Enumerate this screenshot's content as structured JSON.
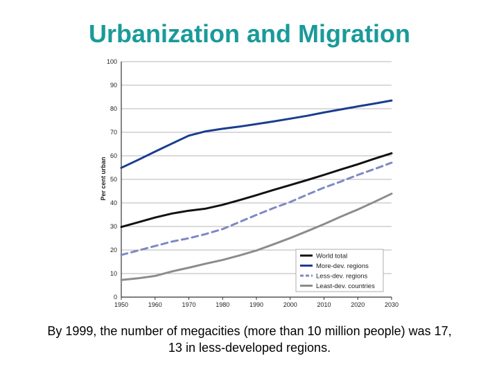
{
  "title": "Urbanization and Migration",
  "caption_line1": "By 1999, the number of megacities (more than 10 million people) was 17,",
  "caption_line2": "13 in less-developed regions.",
  "chart_data": {
    "type": "line",
    "xlabel": "",
    "ylabel": "Per cent urban",
    "xlim": [
      1950,
      2030
    ],
    "ylim": [
      0,
      100
    ],
    "xticks": [
      1950,
      1960,
      1970,
      1980,
      1990,
      2000,
      2010,
      2020,
      2030
    ],
    "yticks": [
      0,
      10,
      20,
      30,
      40,
      50,
      60,
      70,
      80,
      90,
      100
    ],
    "grid": "horizontal",
    "legend_position": "bottom-right",
    "x": [
      1950,
      1955,
      1960,
      1965,
      1970,
      1975,
      1980,
      1985,
      1990,
      1995,
      2000,
      2005,
      2010,
      2015,
      2020,
      2025,
      2030
    ],
    "series": [
      {
        "name": "World total",
        "color": "#111111",
        "dash": "solid",
        "values": [
          29.8,
          31.8,
          33.8,
          35.5,
          36.7,
          37.6,
          39.2,
          41.2,
          43.3,
          45.5,
          47.6,
          49.7,
          51.9,
          54.2,
          56.4,
          58.8,
          61.1
        ]
      },
      {
        "name": "More-dev. regions",
        "color": "#1a3d8f",
        "dash": "solid",
        "values": [
          54.9,
          58.3,
          61.8,
          65.2,
          68.6,
          70.4,
          71.5,
          72.4,
          73.5,
          74.6,
          75.8,
          77.0,
          78.4,
          79.7,
          81.0,
          82.2,
          83.5
        ]
      },
      {
        "name": "Less-dev. regions",
        "color": "#7d89c4",
        "dash": "dashed",
        "values": [
          17.9,
          19.8,
          21.7,
          23.6,
          25.0,
          26.8,
          28.9,
          31.9,
          34.9,
          37.8,
          40.4,
          43.5,
          46.5,
          49.1,
          51.9,
          54.4,
          57.1
        ]
      },
      {
        "name": "Least-dev. countries",
        "color": "#8c8c8c",
        "dash": "solid",
        "values": [
          7.3,
          8.0,
          9.0,
          10.9,
          12.5,
          14.2,
          15.8,
          17.7,
          19.8,
          22.4,
          25.1,
          28.0,
          31.0,
          34.2,
          37.2,
          40.5,
          43.9
        ]
      }
    ]
  }
}
